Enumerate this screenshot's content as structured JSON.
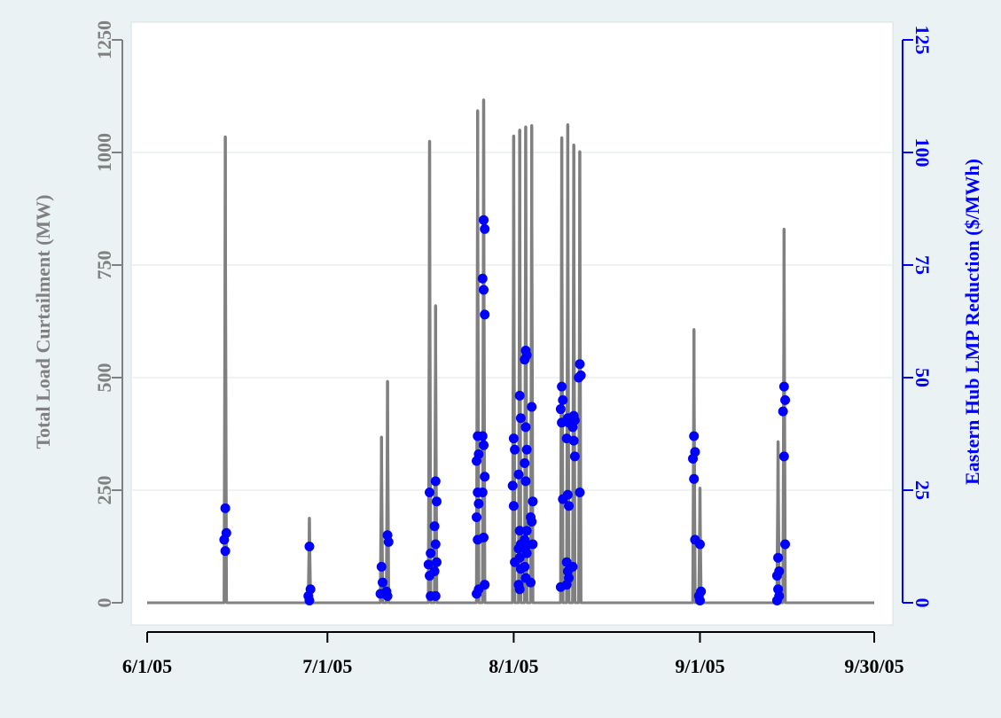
{
  "chart_data": {
    "type": "line",
    "title": "",
    "xlabel": "",
    "x_ticks": [
      "6/1/05",
      "7/1/05",
      "8/1/05",
      "9/1/05",
      "9/30/05"
    ],
    "xlim": [
      "6/1/05",
      "9/30/05"
    ],
    "grid": true,
    "legend": "none",
    "y_left": {
      "label": "Total Load Curtailment (MW)",
      "lim": [
        0,
        1250
      ],
      "ticks": [
        "0",
        "250",
        "500",
        "750",
        "1000",
        "1250"
      ],
      "color": "#808080"
    },
    "y_right": {
      "label": "Eastern Hub LMP Reduction ($/MWh)",
      "lim": [
        0,
        125
      ],
      "ticks": [
        "0",
        "25",
        "50",
        "75",
        "100",
        "125"
      ],
      "color": "#0000ff"
    },
    "series": [
      {
        "axis": "left",
        "kind": "spikes",
        "color": "#808080",
        "points": [
          {
            "x": "6/14/05",
            "y": 1035
          },
          {
            "x": "6/28/05",
            "y": 188
          },
          {
            "x": "7/10/05",
            "y": 368
          },
          {
            "x": "7/11/05",
            "y": 492
          },
          {
            "x": "7/18/05",
            "y": 1025
          },
          {
            "x": "7/19/05",
            "y": 660
          },
          {
            "x": "7/26/05",
            "y": 1093
          },
          {
            "x": "7/27/05",
            "y": 1117
          },
          {
            "x": "8/1/05",
            "y": 1037
          },
          {
            "x": "8/2/05",
            "y": 1050
          },
          {
            "x": "8/3/05",
            "y": 1057
          },
          {
            "x": "8/4/05",
            "y": 1060
          },
          {
            "x": "8/9/05",
            "y": 1033
          },
          {
            "x": "8/10/05",
            "y": 1062
          },
          {
            "x": "8/11/05",
            "y": 1017
          },
          {
            "x": "8/12/05",
            "y": 1002
          },
          {
            "x": "8/31/05",
            "y": 607
          },
          {
            "x": "9/1/05",
            "y": 255
          },
          {
            "x": "9/14/05",
            "y": 358
          },
          {
            "x": "9/15/05",
            "y": 830
          }
        ]
      },
      {
        "axis": "right",
        "kind": "points",
        "color": "#0000ff",
        "points": [
          {
            "x": "6/14/05",
            "y": 21
          },
          {
            "x": "6/14/05",
            "y": 15.5
          },
          {
            "x": "6/14/05",
            "y": 14
          },
          {
            "x": "6/14/05",
            "y": 11.5
          },
          {
            "x": "6/28/05",
            "y": 12.5
          },
          {
            "x": "6/28/05",
            "y": 3
          },
          {
            "x": "6/28/05",
            "y": 1.5
          },
          {
            "x": "6/28/05",
            "y": 0.5
          },
          {
            "x": "7/10/05",
            "y": 8
          },
          {
            "x": "7/10/05",
            "y": 4.5
          },
          {
            "x": "7/10/05",
            "y": 2
          },
          {
            "x": "7/11/05",
            "y": 15
          },
          {
            "x": "7/11/05",
            "y": 13.5
          },
          {
            "x": "7/11/05",
            "y": 2.5
          },
          {
            "x": "7/11/05",
            "y": 1.5
          },
          {
            "x": "7/18/05",
            "y": 24.5
          },
          {
            "x": "7/18/05",
            "y": 11
          },
          {
            "x": "7/18/05",
            "y": 8.5
          },
          {
            "x": "7/18/05",
            "y": 6
          },
          {
            "x": "7/18/05",
            "y": 1.5
          },
          {
            "x": "7/19/05",
            "y": 27
          },
          {
            "x": "7/19/05",
            "y": 22.5
          },
          {
            "x": "7/19/05",
            "y": 17
          },
          {
            "x": "7/19/05",
            "y": 13
          },
          {
            "x": "7/19/05",
            "y": 9
          },
          {
            "x": "7/19/05",
            "y": 7
          },
          {
            "x": "7/19/05",
            "y": 1.5
          },
          {
            "x": "7/26/05",
            "y": 37
          },
          {
            "x": "7/26/05",
            "y": 33
          },
          {
            "x": "7/26/05",
            "y": 31.5
          },
          {
            "x": "7/26/05",
            "y": 24.5
          },
          {
            "x": "7/26/05",
            "y": 22
          },
          {
            "x": "7/26/05",
            "y": 19
          },
          {
            "x": "7/26/05",
            "y": 14
          },
          {
            "x": "7/26/05",
            "y": 3
          },
          {
            "x": "7/26/05",
            "y": 2
          },
          {
            "x": "7/27/05",
            "y": 85
          },
          {
            "x": "7/27/05",
            "y": 83
          },
          {
            "x": "7/27/05",
            "y": 72
          },
          {
            "x": "7/27/05",
            "y": 69.5
          },
          {
            "x": "7/27/05",
            "y": 64
          },
          {
            "x": "7/27/05",
            "y": 37
          },
          {
            "x": "7/27/05",
            "y": 35
          },
          {
            "x": "7/27/05",
            "y": 28
          },
          {
            "x": "7/27/05",
            "y": 24.5
          },
          {
            "x": "7/27/05",
            "y": 14.5
          },
          {
            "x": "7/27/05",
            "y": 4
          },
          {
            "x": "8/1/05",
            "y": 36.5
          },
          {
            "x": "8/1/05",
            "y": 34
          },
          {
            "x": "8/1/05",
            "y": 26
          },
          {
            "x": "8/1/05",
            "y": 21.5
          },
          {
            "x": "8/1/05",
            "y": 9
          },
          {
            "x": "8/2/05",
            "y": 46
          },
          {
            "x": "8/2/05",
            "y": 41
          },
          {
            "x": "8/2/05",
            "y": 28.5
          },
          {
            "x": "8/2/05",
            "y": 16
          },
          {
            "x": "8/2/05",
            "y": 13
          },
          {
            "x": "8/2/05",
            "y": 12
          },
          {
            "x": "8/2/05",
            "y": 10
          },
          {
            "x": "8/2/05",
            "y": 7.5
          },
          {
            "x": "8/2/05",
            "y": 4
          },
          {
            "x": "8/2/05",
            "y": 3
          },
          {
            "x": "8/3/05",
            "y": 56
          },
          {
            "x": "8/3/05",
            "y": 55
          },
          {
            "x": "8/3/05",
            "y": 54
          },
          {
            "x": "8/3/05",
            "y": 39
          },
          {
            "x": "8/3/05",
            "y": 34
          },
          {
            "x": "8/3/05",
            "y": 31
          },
          {
            "x": "8/3/05",
            "y": 27
          },
          {
            "x": "8/3/05",
            "y": 16
          },
          {
            "x": "8/3/05",
            "y": 14
          },
          {
            "x": "8/3/05",
            "y": 12.5
          },
          {
            "x": "8/3/05",
            "y": 11
          },
          {
            "x": "8/3/05",
            "y": 8
          },
          {
            "x": "8/3/05",
            "y": 5.5
          },
          {
            "x": "8/4/05",
            "y": 43.5
          },
          {
            "x": "8/4/05",
            "y": 22.5
          },
          {
            "x": "8/4/05",
            "y": 19
          },
          {
            "x": "8/4/05",
            "y": 18
          },
          {
            "x": "8/4/05",
            "y": 13
          },
          {
            "x": "8/4/05",
            "y": 4.5
          },
          {
            "x": "8/9/05",
            "y": 48
          },
          {
            "x": "8/9/05",
            "y": 45
          },
          {
            "x": "8/9/05",
            "y": 43
          },
          {
            "x": "8/9/05",
            "y": 40
          },
          {
            "x": "8/9/05",
            "y": 23
          },
          {
            "x": "8/9/05",
            "y": 3.5
          },
          {
            "x": "8/10/05",
            "y": 41
          },
          {
            "x": "8/10/05",
            "y": 40
          },
          {
            "x": "8/10/05",
            "y": 36.5
          },
          {
            "x": "8/10/05",
            "y": 24
          },
          {
            "x": "8/10/05",
            "y": 21.5
          },
          {
            "x": "8/10/05",
            "y": 9
          },
          {
            "x": "8/10/05",
            "y": 7
          },
          {
            "x": "8/10/05",
            "y": 5.5
          },
          {
            "x": "8/10/05",
            "y": 4
          },
          {
            "x": "8/11/05",
            "y": 41.5
          },
          {
            "x": "8/11/05",
            "y": 40.5
          },
          {
            "x": "8/11/05",
            "y": 39
          },
          {
            "x": "8/11/05",
            "y": 36
          },
          {
            "x": "8/11/05",
            "y": 32.5
          },
          {
            "x": "8/11/05",
            "y": 8
          },
          {
            "x": "8/12/05",
            "y": 53
          },
          {
            "x": "8/12/05",
            "y": 50.5
          },
          {
            "x": "8/12/05",
            "y": 50
          },
          {
            "x": "8/12/05",
            "y": 24.5
          },
          {
            "x": "8/31/05",
            "y": 37
          },
          {
            "x": "8/31/05",
            "y": 33.5
          },
          {
            "x": "8/31/05",
            "y": 32
          },
          {
            "x": "8/31/05",
            "y": 27.5
          },
          {
            "x": "8/31/05",
            "y": 14
          },
          {
            "x": "9/1/05",
            "y": 13
          },
          {
            "x": "9/1/05",
            "y": 2.5
          },
          {
            "x": "9/1/05",
            "y": 1.5
          },
          {
            "x": "9/1/05",
            "y": 0.5
          },
          {
            "x": "9/14/05",
            "y": 10
          },
          {
            "x": "9/14/05",
            "y": 7
          },
          {
            "x": "9/14/05",
            "y": 6
          },
          {
            "x": "9/14/05",
            "y": 3
          },
          {
            "x": "9/14/05",
            "y": 1.5
          },
          {
            "x": "9/14/05",
            "y": 0.5
          },
          {
            "x": "9/15/05",
            "y": 48
          },
          {
            "x": "9/15/05",
            "y": 45
          },
          {
            "x": "9/15/05",
            "y": 42.5
          },
          {
            "x": "9/15/05",
            "y": 32.5
          },
          {
            "x": "9/15/05",
            "y": 13
          }
        ]
      }
    ]
  }
}
